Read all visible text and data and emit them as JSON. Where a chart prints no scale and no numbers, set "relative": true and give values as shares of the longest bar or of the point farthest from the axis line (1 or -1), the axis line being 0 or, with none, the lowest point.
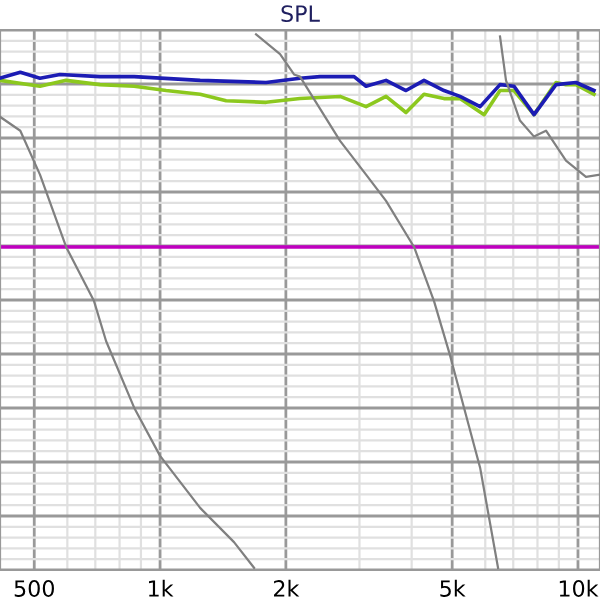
{
  "chart_data": {
    "type": "line",
    "title": "SPL",
    "relative": true,
    "log": "x",
    "grid": true,
    "tick_labels": "x",
    "marker": "none",
    "line_style": "solid",
    "xlim": [
      414,
      11290
    ],
    "xticks": [
      500,
      {
        "value": 1000,
        "label": "1k"
      },
      {
        "value": 2000,
        "label": "2k"
      },
      {
        "value": 5000,
        "label": "5k"
      },
      {
        "value": 10000,
        "label": "10k"
      }
    ],
    "ref_lines": [
      {
        "axis": "y",
        "value": 0.603,
        "label": null,
        "color": "#c000c0"
      }
    ],
    "series": [
      {
        "color": "#8cc81e",
        "x": [
          414,
          516,
          596,
          718,
          867,
          1034,
          1247,
          1439,
          1793,
          2162,
          2696,
          3111,
          3473,
          3877,
          4281,
          4779,
          5220,
          5961,
          6508,
          7030,
          7849,
          8860,
          9361,
          9890,
          10920
        ],
        "values": [
          0.914,
          0.903,
          0.914,
          0.906,
          0.903,
          0.895,
          0.888,
          0.876,
          0.873,
          0.88,
          0.884,
          0.865,
          0.884,
          0.854,
          0.888,
          0.88,
          0.88,
          0.85,
          0.895,
          0.895,
          0.85,
          0.91,
          0.906,
          0.906,
          0.888
        ]
      },
      {
        "color": "#1c1cb4",
        "x": [
          414,
          463,
          516,
          576,
          718,
          867,
          1247,
          1793,
          2162,
          2414,
          2912,
          3111,
          3473,
          3877,
          4281,
          4779,
          5220,
          5832,
          6508,
          7030,
          7849,
          8860,
          9890,
          10920
        ],
        "values": [
          0.918,
          0.929,
          0.918,
          0.925,
          0.921,
          0.921,
          0.914,
          0.91,
          0.918,
          0.921,
          0.921,
          0.903,
          0.914,
          0.895,
          0.914,
          0.895,
          0.884,
          0.865,
          0.906,
          0.903,
          0.85,
          0.906,
          0.91,
          0.895
        ]
      },
      {
        "color": "#808080",
        "x": [
          414,
          463,
          516,
          596,
          695,
          743,
          867,
          1000,
          1247,
          1503,
          1679
        ],
        "values": [
          0.846,
          0.82,
          0.738,
          0.603,
          0.502,
          0.427,
          0.303,
          0.213,
          0.116,
          0.052,
          0.004
        ]
      },
      {
        "color": "#808080",
        "x": [
          1697,
          1937,
          2092,
          2162,
          2696,
          3111,
          3473,
          4053,
          4524,
          4940,
          5337,
          5832,
          6438
        ],
        "values": [
          1.0,
          0.963,
          0.925,
          0.921,
          0.801,
          0.738,
          0.689,
          0.603,
          0.502,
          0.401,
          0.303,
          0.191,
          0.004
        ]
      },
      {
        "color": "#808080",
        "x": [
          6508,
          6726,
          7264,
          7849,
          8385,
          9361,
          10450,
          11290
        ],
        "values": [
          0.996,
          0.914,
          0.839,
          0.809,
          0.82,
          0.764,
          0.734,
          0.738
        ]
      }
    ]
  }
}
